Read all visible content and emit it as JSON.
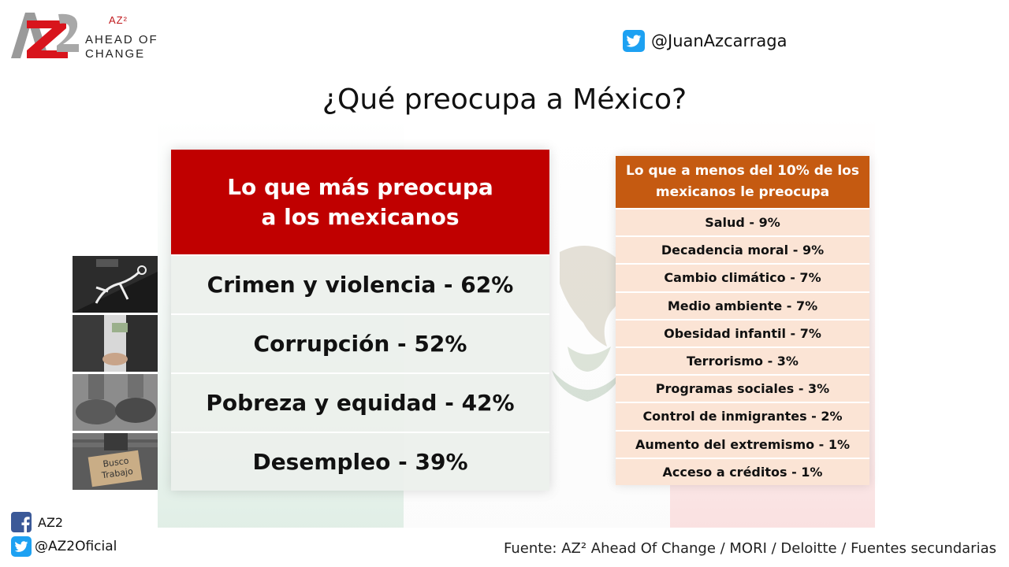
{
  "logo": {
    "superscript": "AZ²",
    "line1": "AHEAD OF",
    "line2": "CHANGE"
  },
  "twitter_top": {
    "handle": "@JuanAzcarraga",
    "icon": "twitter-icon"
  },
  "title": "¿Qué preocupa a México?",
  "main_table": {
    "header_line1": "Lo que más preocupa",
    "header_line2": "a los mexicanos",
    "rows": [
      "Crimen y violencia - 62%",
      "Corrupción - 52%",
      "Pobreza y equidad - 42%",
      "Desempleo - 39%"
    ]
  },
  "photos": {
    "sign_line1": "Busco",
    "sign_line2": "Trabajo"
  },
  "side_table": {
    "header_line1": "Lo que a menos del 10% de los",
    "header_line2": "mexicanos le preocupa",
    "rows": [
      "Salud - 9%",
      "Decadencia moral - 9%",
      "Cambio climático - 7%",
      "Medio ambiente - 7%",
      "Obesidad infantil - 7%",
      "Terrorismo  - 3%",
      "Programas sociales - 3%",
      "Control de inmigrantes - 2%",
      "Aumento del extremismo - 1%",
      "Acceso a créditos - 1%"
    ]
  },
  "footer": {
    "facebook_label": "AZ2",
    "twitter_label": "@AZ2Oficial",
    "source": "Fuente: AZ² Ahead Of Change / MORI / Deloitte / Fuentes secundarias"
  },
  "colors": {
    "main_header": "#c00000",
    "side_header": "#c55a11",
    "side_row": "#fbe4d5",
    "twitter": "#1da1f2",
    "facebook": "#3b5998"
  }
}
